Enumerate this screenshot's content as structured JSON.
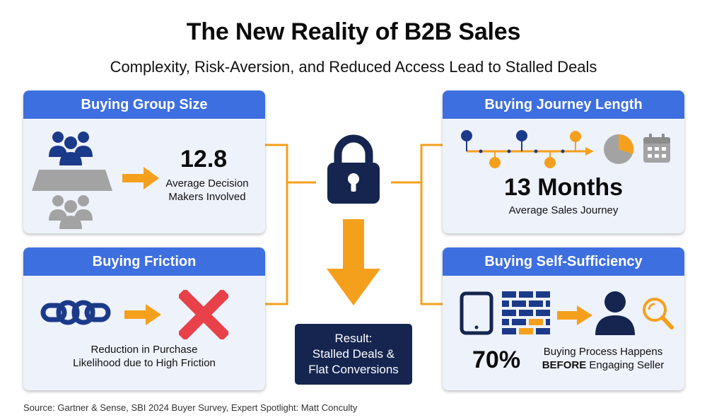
{
  "title": "The New Reality of B2B Sales",
  "subtitle": "Complexity, Risk-Aversion, and Reduced Access Lead to Stalled Deals",
  "cards": {
    "group": {
      "header": "Buying Group Size",
      "value": "12.8",
      "caption_line1": "Average Decision",
      "caption_line2": "Makers Involved"
    },
    "friction": {
      "header": "Buying Friction",
      "caption_line1": "Reduction in Purchase",
      "caption_line2": "Likelihood due to High Friction"
    },
    "journey": {
      "header": "Buying Journey Length",
      "value": "13 Months",
      "caption": "Average Sales Journey"
    },
    "self": {
      "header": "Buying Self-Sufficiency",
      "value": "70%",
      "caption_line1": "Buying Process Happens",
      "caption_line2_bold": "BEFORE",
      "caption_line2_rest": " Engaging Seller"
    }
  },
  "result": {
    "line1": "Result:",
    "line2": "Stalled Deals &",
    "line3": "Flat Conversions"
  },
  "source": "Source: Gartner & Sense, SBI 2024 Buyer Survey, Expert Spotlight: Matt Conculty",
  "colors": {
    "accent_blue": "#3e6fe0",
    "navy": "#1c3a8a",
    "orange": "#f5a01c",
    "red": "#e8414a",
    "dark_navy": "#15254f",
    "gray": "#a3a3a3"
  },
  "icons": [
    "people-group-icon",
    "table-icon",
    "arrow-right-icon",
    "chain-link-icon",
    "x-mark-icon",
    "timeline-icon",
    "pie-chart-icon",
    "calendar-icon",
    "tablet-icon",
    "bricks-icon",
    "person-icon",
    "magnifier-icon",
    "padlock-icon",
    "arrow-down-icon"
  ]
}
